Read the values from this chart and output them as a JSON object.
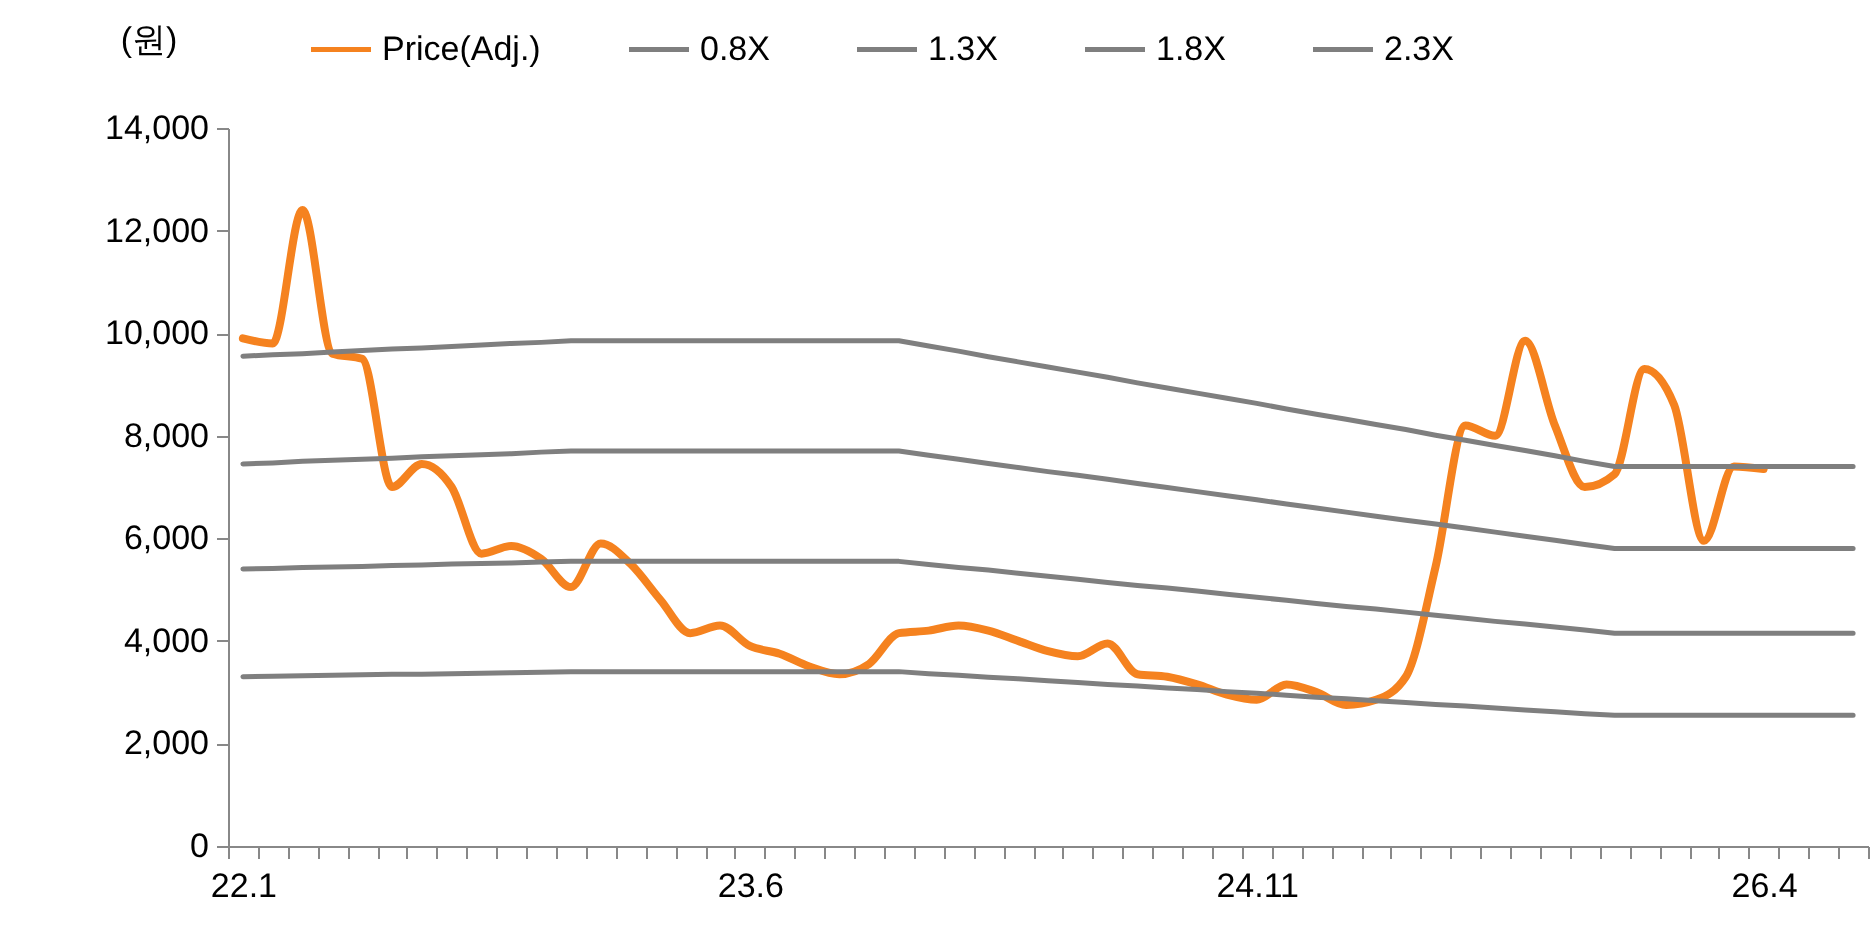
{
  "chart_data": {
    "type": "line",
    "ylabel": "(원)",
    "categories": [
      "22.1",
      null,
      null,
      null,
      null,
      null,
      null,
      null,
      null,
      null,
      null,
      null,
      null,
      null,
      null,
      null,
      null,
      "23.6",
      null,
      null,
      null,
      null,
      null,
      null,
      null,
      null,
      null,
      null,
      null,
      null,
      null,
      null,
      null,
      null,
      "24.11",
      null,
      null,
      null,
      null,
      null,
      null,
      null,
      null,
      null,
      null,
      null,
      null,
      null,
      null,
      null,
      null,
      "26.4",
      null,
      null,
      null
    ],
    "ylim": [
      0,
      14000
    ],
    "yticks": [
      0,
      {
        "value": 2000,
        "label": "2,000"
      },
      {
        "value": 4000,
        "label": "4,000"
      },
      {
        "value": 6000,
        "label": "6,000"
      },
      {
        "value": 8000,
        "label": "8,000"
      },
      {
        "value": 10000,
        "label": "10,000"
      },
      {
        "value": 12000,
        "label": "12,000"
      },
      {
        "value": 14000,
        "label": "14,000"
      }
    ],
    "legend": "top",
    "series": [
      {
        "name": "Price(Adj.)",
        "color": "#f5821f",
        "values": [
          9900,
          9800,
          12400,
          9600,
          9500,
          7000,
          7450,
          7000,
          5700,
          5850,
          5600,
          5050,
          5900,
          5500,
          4800,
          4150,
          4300,
          3900,
          3750,
          3500,
          3350,
          3550,
          4150,
          4200,
          4300,
          4200,
          4000,
          3800,
          3700,
          3950,
          3350,
          3300,
          3150,
          2950,
          2850,
          3150,
          3000,
          2750,
          2850,
          3300,
          5450,
          8200,
          8000,
          9850,
          8200,
          7000,
          7250,
          9300,
          8600,
          5950,
          7400,
          7350,
          null,
          null,
          null
        ]
      },
      {
        "name": "0.8X",
        "color": "#7f7f7f",
        "values": [
          3300,
          3310,
          3320,
          3330,
          3340,
          3350,
          3350,
          3360,
          3370,
          3380,
          3390,
          3400,
          3400,
          3400,
          3400,
          3400,
          3400,
          3400,
          3400,
          3400,
          3400,
          3400,
          3400,
          3360,
          3330,
          3290,
          3260,
          3220,
          3190,
          3150,
          3120,
          3080,
          3050,
          3010,
          2980,
          2940,
          2900,
          2870,
          2830,
          2800,
          2760,
          2730,
          2690,
          2650,
          2620,
          2580,
          2550,
          2550,
          2550,
          2550,
          2550,
          2550,
          2550,
          2550,
          2550
        ]
      },
      {
        "name": "1.3X",
        "color": "#7f7f7f",
        "values": [
          5400,
          5410,
          5430,
          5440,
          5450,
          5470,
          5480,
          5500,
          5510,
          5520,
          5540,
          5550,
          5550,
          5550,
          5550,
          5550,
          5550,
          5550,
          5550,
          5550,
          5550,
          5550,
          5550,
          5490,
          5430,
          5380,
          5320,
          5260,
          5200,
          5140,
          5080,
          5030,
          4970,
          4910,
          4850,
          4790,
          4730,
          4670,
          4620,
          4560,
          4500,
          4440,
          4380,
          4330,
          4270,
          4210,
          4150,
          4150,
          4150,
          4150,
          4150,
          4150,
          4150,
          4150,
          4150
        ]
      },
      {
        "name": "1.8X",
        "color": "#7f7f7f",
        "values": [
          7450,
          7470,
          7500,
          7520,
          7540,
          7560,
          7590,
          7610,
          7630,
          7650,
          7680,
          7700,
          7700,
          7700,
          7700,
          7700,
          7700,
          7700,
          7700,
          7700,
          7700,
          7700,
          7700,
          7620,
          7540,
          7460,
          7380,
          7300,
          7230,
          7150,
          7070,
          6990,
          6910,
          6830,
          6750,
          6670,
          6590,
          6510,
          6430,
          6350,
          6280,
          6200,
          6120,
          6040,
          5960,
          5880,
          5800,
          5800,
          5800,
          5800,
          5800,
          5800,
          5800,
          5800,
          5800
        ]
      },
      {
        "name": "2.3X",
        "color": "#7f7f7f",
        "values": [
          9550,
          9580,
          9600,
          9630,
          9660,
          9690,
          9710,
          9740,
          9770,
          9800,
          9820,
          9850,
          9850,
          9850,
          9850,
          9850,
          9850,
          9850,
          9850,
          9850,
          9850,
          9850,
          9850,
          9750,
          9650,
          9540,
          9440,
          9340,
          9240,
          9140,
          9030,
          8930,
          8830,
          8730,
          8630,
          8520,
          8420,
          8320,
          8220,
          8120,
          8010,
          7910,
          7810,
          7710,
          7610,
          7500,
          7400,
          7400,
          7400,
          7400,
          7400,
          7400,
          7400,
          7400,
          7400
        ]
      }
    ]
  }
}
